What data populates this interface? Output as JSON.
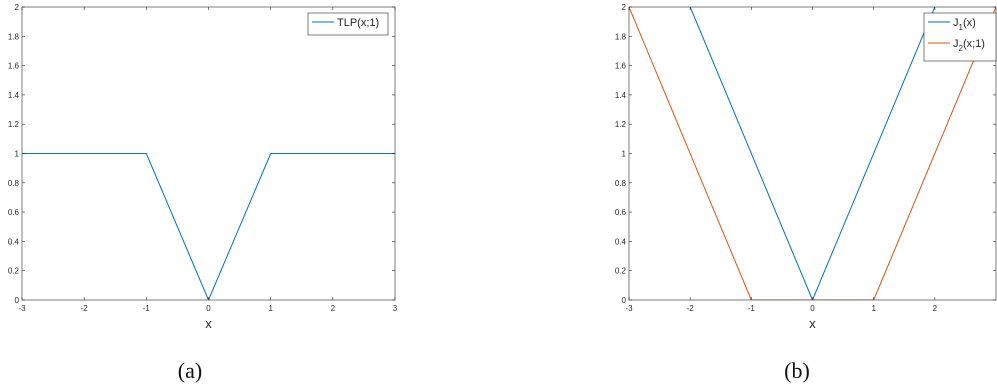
{
  "chart_data": [
    {
      "type": "line",
      "panel_label": "(a)",
      "xlabel": "x",
      "ylabel": "",
      "xlim": [
        -3,
        3
      ],
      "ylim": [
        0,
        2
      ],
      "x_ticks": [
        "-3",
        "-2",
        "-1",
        "0",
        "1",
        "2",
        "3"
      ],
      "y_ticks": [
        "0",
        "0.2",
        "0.4",
        "0.6",
        "0.8",
        "1",
        "1.2",
        "1.4",
        "1.6",
        "1.8",
        "2"
      ],
      "legend_position": "top-right",
      "series": [
        {
          "name": "TLP(x;1)",
          "name_sub": "",
          "name_rest": "",
          "color": "#0072BD",
          "x": [
            -3,
            -1,
            0,
            1,
            3
          ],
          "y": [
            1,
            1,
            0,
            1,
            1
          ]
        }
      ]
    },
    {
      "type": "line",
      "panel_label": "(b)",
      "xlabel": "x",
      "ylabel": "",
      "xlim": [
        -3,
        3
      ],
      "ylim": [
        0,
        2
      ],
      "x_ticks": [
        "-3",
        "-2",
        "-1",
        "0",
        "1",
        "2"
      ],
      "y_ticks": [
        "0",
        "0.2",
        "0.4",
        "0.6",
        "0.8",
        "1",
        "1.2",
        "1.4",
        "1.6",
        "1.8",
        "2"
      ],
      "legend_position": "top-right",
      "series": [
        {
          "name": "J",
          "name_sub": "1",
          "name_rest": "(x)",
          "color": "#0072BD",
          "x": [
            -2,
            0,
            2
          ],
          "y": [
            2,
            0,
            2
          ]
        },
        {
          "name": "J",
          "name_sub": "2",
          "name_rest": "(x;1)",
          "color": "#D95319",
          "x": [
            -3,
            -1,
            1,
            3
          ],
          "y": [
            2,
            0,
            0,
            2
          ]
        }
      ]
    }
  ]
}
